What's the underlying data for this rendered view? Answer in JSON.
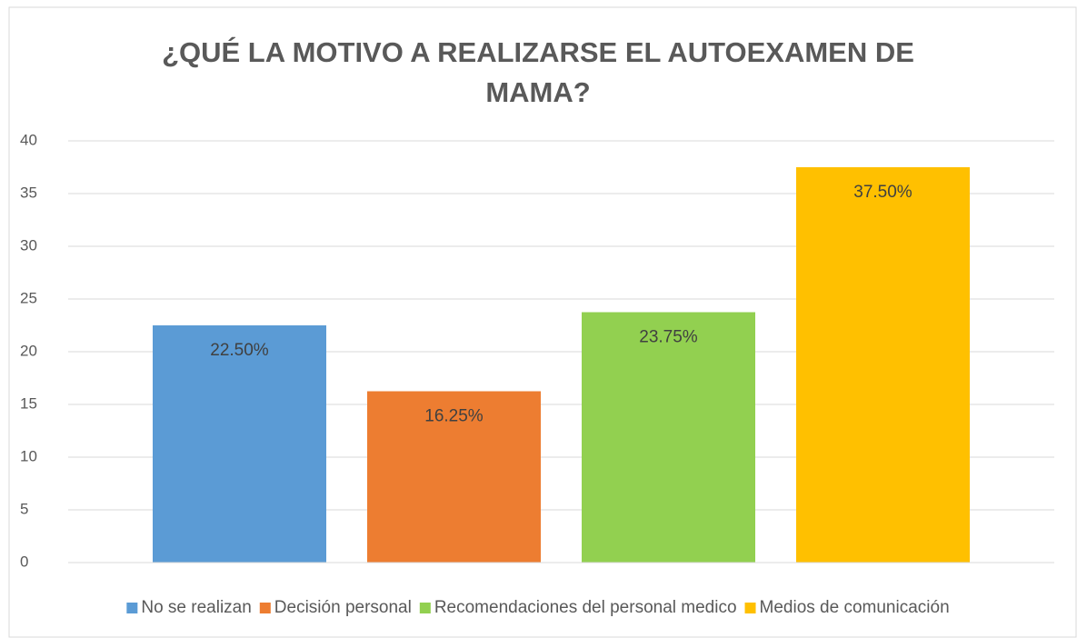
{
  "chart_data": {
    "type": "bar",
    "title": "¿QUÉ LA MOTIVO A REALIZARSE EL AUTOEXAMEN DE MAMA?",
    "categories": [
      null
    ],
    "series": [
      {
        "name": "No se realizan",
        "color": "#5b9bd5",
        "values": [
          22.5
        ],
        "value_labels": [
          "22.50%"
        ]
      },
      {
        "name": "Decisión personal",
        "color": "#ed7d31",
        "values": [
          16.25
        ],
        "value_labels": [
          "16.25%"
        ]
      },
      {
        "name": "Recomendaciones del personal medico",
        "color": "#92d050",
        "values": [
          23.75
        ],
        "value_labels": [
          "23.75%"
        ]
      },
      {
        "name": "Medios de comunicación",
        "color": "#ffc000",
        "values": [
          37.5
        ],
        "value_labels": [
          "37.50%"
        ]
      }
    ],
    "ylim": [
      0,
      40
    ],
    "yticks": [
      0,
      5,
      10,
      15,
      20,
      25,
      30,
      35,
      40
    ],
    "grid": true,
    "legend": "bottom"
  }
}
